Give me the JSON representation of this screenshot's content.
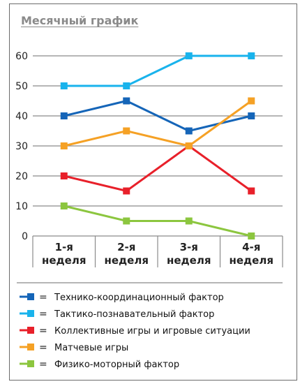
{
  "chart_data": {
    "type": "line",
    "title": "Месячный график",
    "categories": [
      [
        "1-я",
        "неделя"
      ],
      [
        "2-я",
        "неделя"
      ],
      [
        "3-я",
        "неделя"
      ],
      [
        "4-я",
        "неделя"
      ]
    ],
    "ylim": [
      0,
      60
    ],
    "yticks": [
      0,
      10,
      20,
      30,
      40,
      50,
      60
    ],
    "grid": true,
    "legend_position": "bottom",
    "series": [
      {
        "name": "Технико-координационный фактор",
        "color": "#1565b8",
        "values": [
          40,
          45,
          35,
          40
        ]
      },
      {
        "name": "Тактико-познавательный фактор",
        "color": "#19b3ec",
        "values": [
          50,
          50,
          60,
          60
        ]
      },
      {
        "name": "Коллективные игры и игровые ситуации",
        "color": "#e8202a",
        "values": [
          20,
          15,
          30,
          15
        ]
      },
      {
        "name": "Матчевые игры",
        "color": "#f5a125",
        "values": [
          30,
          35,
          30,
          45
        ]
      },
      {
        "name": "Физико-моторный фактор",
        "color": "#8cc63f",
        "values": [
          10,
          5,
          5,
          0
        ]
      }
    ],
    "legend_separator": "="
  }
}
